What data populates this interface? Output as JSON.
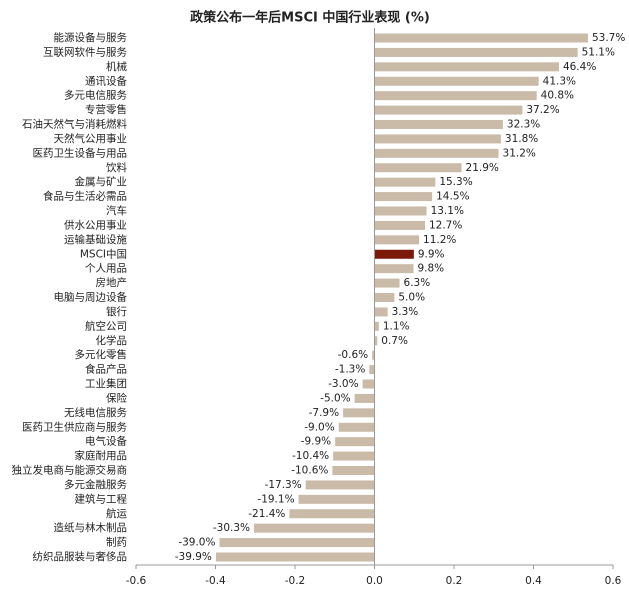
{
  "chart_data": {
    "type": "hbar",
    "title": "政策公布一年后MSCI 中国行业表现 (%)",
    "categories": [
      "能源设备与服务",
      "互联网软件与服务",
      "机械",
      "通讯设备",
      "多元电信服务",
      "专营零售",
      "石油天然气与消耗燃料",
      "天然气公用事业",
      "医药卫生设备与用品",
      "饮料",
      "金属与矿业",
      "食品与生活必需品",
      "汽车",
      "供水公用事业",
      "运输基础设施",
      "MSCI中国",
      "个人用品",
      "房地产",
      "电脑与周边设备",
      "银行",
      "航空公司",
      "化学品",
      "多元化零售",
      "食品产品",
      "工业集团",
      "保险",
      "无线电信服务",
      "医药卫生供应商与服务",
      "电气设备",
      "家庭耐用品",
      "独立发电商与能源交易商",
      "多元金融服务",
      "建筑与工程",
      "航运",
      "造纸与林木制品",
      "制药",
      "纺织品服装与奢侈品"
    ],
    "values": [
      0.537,
      0.511,
      0.464,
      0.413,
      0.408,
      0.372,
      0.323,
      0.318,
      0.312,
      0.219,
      0.153,
      0.145,
      0.131,
      0.127,
      0.112,
      0.099,
      0.098,
      0.063,
      0.05,
      0.033,
      0.011,
      0.007,
      -0.006,
      -0.013,
      -0.03,
      -0.05,
      -0.079,
      -0.09,
      -0.099,
      -0.104,
      -0.106,
      -0.173,
      -0.191,
      -0.214,
      -0.303,
      -0.39,
      -0.399
    ],
    "value_labels": [
      "53.7%",
      "51.1%",
      "46.4%",
      "41.3%",
      "40.8%",
      "37.2%",
      "32.3%",
      "31.8%",
      "31.2%",
      "21.9%",
      "15.3%",
      "14.5%",
      "13.1%",
      "12.7%",
      "11.2%",
      "9.9%",
      "9.8%",
      "6.3%",
      "5.0%",
      "3.3%",
      "1.1%",
      "0.7%",
      "-0.6%",
      "-1.3%",
      "-3.0%",
      "-5.0%",
      "-7.9%",
      "-9.0%",
      "-9.9%",
      "-10.4%",
      "-10.6%",
      "-17.3%",
      "-19.1%",
      "-21.4%",
      "-30.3%",
      "-39.0%",
      "-39.9%"
    ],
    "colors": [
      "#c9bba8",
      "#c9bba8",
      "#c9bba8",
      "#c9bba8",
      "#c9bba8",
      "#c9bba8",
      "#c9bba8",
      "#c9bba8",
      "#c9bba8",
      "#c9bba8",
      "#c9bba8",
      "#c9bba8",
      "#c9bba8",
      "#c9bba8",
      "#c9bba8",
      "#7b1a08",
      "#c9bba8",
      "#c9bba8",
      "#c9bba8",
      "#c9bba8",
      "#c9bba8",
      "#c9bba8",
      "#c9bba8",
      "#c9bba8",
      "#c9bba8",
      "#c9bba8",
      "#c9bba8",
      "#c9bba8",
      "#c9bba8",
      "#c9bba8",
      "#c9bba8",
      "#c9bba8",
      "#c9bba8",
      "#c9bba8",
      "#c9bba8",
      "#c9bba8",
      "#c9bba8"
    ],
    "negative_label_color": "#e0201b",
    "xlim": [
      -0.6,
      0.6
    ],
    "xticks": [
      -0.6,
      -0.4,
      -0.2,
      {
        "value": 0,
        "label": "0.0"
      },
      0.2,
      0.4,
      0.6
    ]
  }
}
